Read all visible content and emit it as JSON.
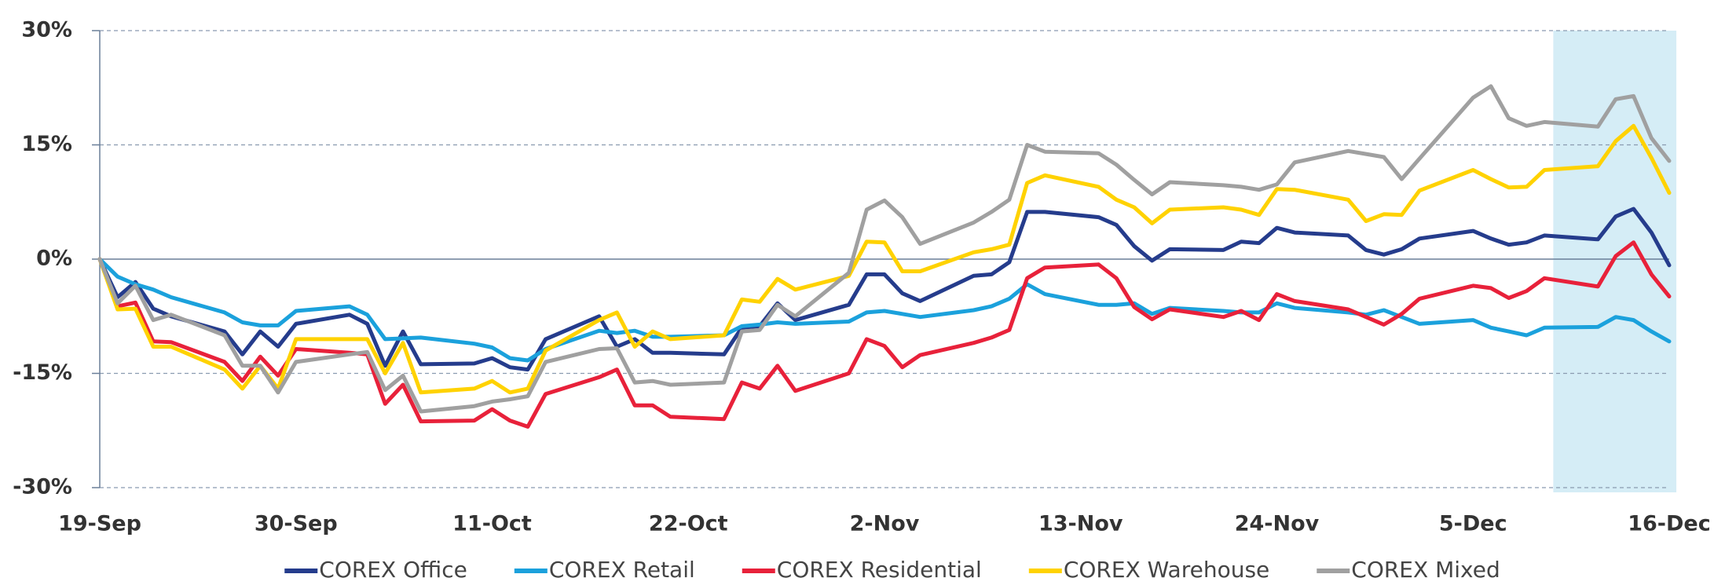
{
  "chart_data": {
    "type": "line",
    "x": [
      0,
      1,
      2,
      3,
      4,
      7,
      8,
      9,
      10,
      11,
      14,
      15,
      16,
      17,
      18,
      21,
      22,
      23,
      24,
      25,
      28,
      29,
      30,
      31,
      32,
      35,
      36,
      37,
      38,
      39,
      42,
      43,
      44,
      45,
      46,
      49,
      50,
      51,
      52,
      53,
      56,
      57,
      58,
      59,
      60,
      63,
      64,
      65,
      66,
      67,
      70,
      71,
      72,
      73,
      74,
      77,
      78,
      79,
      80,
      81,
      84,
      85,
      86,
      87,
      88
    ],
    "series": [
      {
        "name": "COREX Office",
        "color": "#253c8c",
        "values": [
          0,
          -5,
          -3,
          -6.5,
          -7.5,
          -9.5,
          -12.5,
          -9.5,
          -11.5,
          -8.5,
          -7.3,
          -8.5,
          -14,
          -9.5,
          -13.8,
          -13.7,
          -13,
          -14.2,
          -14.5,
          -10.5,
          -7.5,
          -11.5,
          -10.5,
          -12.3,
          -12.3,
          -12.5,
          -9,
          -8.8,
          -5.8,
          -8,
          -6,
          -2,
          -2,
          -4.5,
          -5.5,
          -2.2,
          -2,
          -0.4,
          6.2,
          6.2,
          5.5,
          4.5,
          1.7,
          -0.2,
          1.3,
          1.2,
          2.3,
          2.1,
          4.1,
          3.5,
          3.1,
          1.2,
          0.6,
          1.3,
          2.7,
          3.7,
          2.7,
          1.9,
          2.2,
          3.1,
          2.6,
          5.6,
          6.6,
          3.5,
          -0.8
        ]
      },
      {
        "name": "COREX Retail",
        "color": "#1ba1dc",
        "values": [
          0,
          -2.3,
          -3.3,
          -4,
          -5,
          -7,
          -8.3,
          -8.7,
          -8.7,
          -6.8,
          -6.2,
          -7.3,
          -10.5,
          -10.4,
          -10.3,
          -11.1,
          -11.6,
          -13,
          -13.3,
          -11.8,
          -9.4,
          -9.7,
          -9.4,
          -10.2,
          -10.2,
          -10,
          -8.8,
          -8.6,
          -8.3,
          -8.5,
          -8.2,
          -7,
          -6.8,
          -7.2,
          -7.6,
          -6.7,
          -6.2,
          -5.2,
          -3.3,
          -4.6,
          -6,
          -6,
          -5.8,
          -7.2,
          -6.4,
          -6.8,
          -7,
          -7,
          -5.8,
          -6.4,
          -7,
          -7.3,
          -6.7,
          -7.6,
          -8.5,
          -8,
          -9,
          -9.5,
          -10,
          -9,
          -8.9,
          -7.6,
          -8,
          -9.5,
          -10.8
        ]
      },
      {
        "name": "COREX Residential",
        "color": "#e8213a",
        "values": [
          0,
          -6.2,
          -5.7,
          -10.8,
          -10.9,
          -13.5,
          -16,
          -12.8,
          -15.3,
          -11.8,
          -12.3,
          -12.5,
          -19,
          -16.5,
          -21.3,
          -21.2,
          -19.7,
          -21.2,
          -22,
          -17.7,
          -15.5,
          -14.5,
          -19.2,
          -19.2,
          -20.7,
          -21,
          -16.2,
          -17,
          -14,
          -17.3,
          -15,
          -10.5,
          -11.4,
          -14.2,
          -12.6,
          -11,
          -10.3,
          -9.3,
          -2.5,
          -1.1,
          -0.7,
          -2.5,
          -6.3,
          -7.9,
          -6.6,
          -7.6,
          -6.8,
          -8,
          -4.6,
          -5.5,
          -6.6,
          -7.6,
          -8.6,
          -7.2,
          -5.2,
          -3.5,
          -3.8,
          -5.1,
          -4.2,
          -2.5,
          -3.6,
          0.4,
          2.2,
          -2,
          -4.9
        ]
      },
      {
        "name": "COREX Warehouse",
        "color": "#ffd200",
        "values": [
          0,
          -6.6,
          -6.5,
          -11.5,
          -11.5,
          -14.5,
          -17,
          -14,
          -17,
          -10.5,
          -10.5,
          -10.5,
          -15,
          -11,
          -17.5,
          -17,
          -16,
          -17.5,
          -17,
          -12,
          -8,
          -7,
          -11.5,
          -9.5,
          -10.5,
          -10,
          -5.3,
          -5.6,
          -2.6,
          -4,
          -2.2,
          2.3,
          2.2,
          -1.6,
          -1.6,
          0.9,
          1.3,
          1.9,
          10,
          11,
          9.5,
          7.8,
          6.8,
          4.7,
          6.5,
          6.8,
          6.5,
          5.8,
          9.2,
          9.1,
          7.8,
          5,
          5.9,
          5.8,
          9,
          11.7,
          10.5,
          9.4,
          9.5,
          11.7,
          12.2,
          15.5,
          17.5,
          13.3,
          8.7
        ]
      },
      {
        "name": "COREX Mixed",
        "color": "#a0a0a0",
        "values": [
          0,
          -5.8,
          -3.5,
          -8,
          -7.3,
          -10,
          -14,
          -14,
          -17.5,
          -13.5,
          -12.5,
          -12.2,
          -17.2,
          -15.3,
          -20,
          -19.3,
          -18.7,
          -18.4,
          -18,
          -13.5,
          -11.8,
          -11.7,
          -16.2,
          -16,
          -16.5,
          -16.2,
          -9.5,
          -9.3,
          -6,
          -7.5,
          -1.8,
          6.5,
          7.7,
          5.5,
          2,
          4.8,
          6.2,
          7.8,
          15,
          14.1,
          13.9,
          12.4,
          10.4,
          8.5,
          10.1,
          9.7,
          9.5,
          9.1,
          9.8,
          12.7,
          14.2,
          13.8,
          13.4,
          10.5,
          13.2,
          21.2,
          22.7,
          18.5,
          17.5,
          18,
          17.4,
          21,
          21.4,
          15.9,
          12.9
        ]
      }
    ],
    "xlim": [
      0,
      88
    ],
    "xticks": [
      {
        "value": 0,
        "label": "19-Sep"
      },
      {
        "value": 11,
        "label": "30-Sep"
      },
      {
        "value": 22,
        "label": "11-Oct"
      },
      {
        "value": 33,
        "label": "22-Oct"
      },
      {
        "value": 44,
        "label": "2-Nov"
      },
      {
        "value": 55,
        "label": "13-Nov"
      },
      {
        "value": 66,
        "label": "24-Nov"
      },
      {
        "value": 77,
        "label": "5-Dec"
      },
      {
        "value": 88,
        "label": "16-Dec"
      }
    ],
    "ylim": [
      -30,
      30
    ],
    "yticks": [
      {
        "value": -30,
        "label": "-30%"
      },
      {
        "value": -15,
        "label": "-15%"
      },
      {
        "value": 0,
        "label": "0%"
      },
      {
        "value": 15,
        "label": "15%"
      },
      {
        "value": 30,
        "label": "30%"
      }
    ],
    "grid": true,
    "shaded_region": {
      "x": [
        81.5,
        88.4
      ],
      "color": "#d5edf6"
    },
    "legend": "bottom"
  }
}
